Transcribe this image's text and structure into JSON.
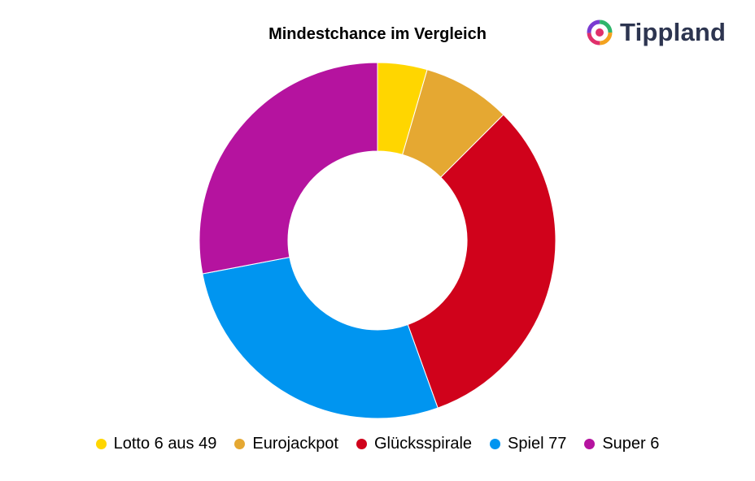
{
  "brand": {
    "name": "Tippland",
    "icon": "tippland-logo-icon"
  },
  "chart_data": {
    "type": "pie",
    "style": "donut",
    "title": "Mindestchance im Vergleich",
    "legend_position": "bottom",
    "categories": [
      "Lotto 6 aus 49",
      "Eurojackpot",
      "Glücksspirale",
      "Spiel 77",
      "Super 6"
    ],
    "values": [
      4.5,
      8,
      32,
      27.5,
      28
    ],
    "colors": [
      "#FFD600",
      "#E5A832",
      "#D0021B",
      "#0095F0",
      "#B5139F"
    ]
  }
}
